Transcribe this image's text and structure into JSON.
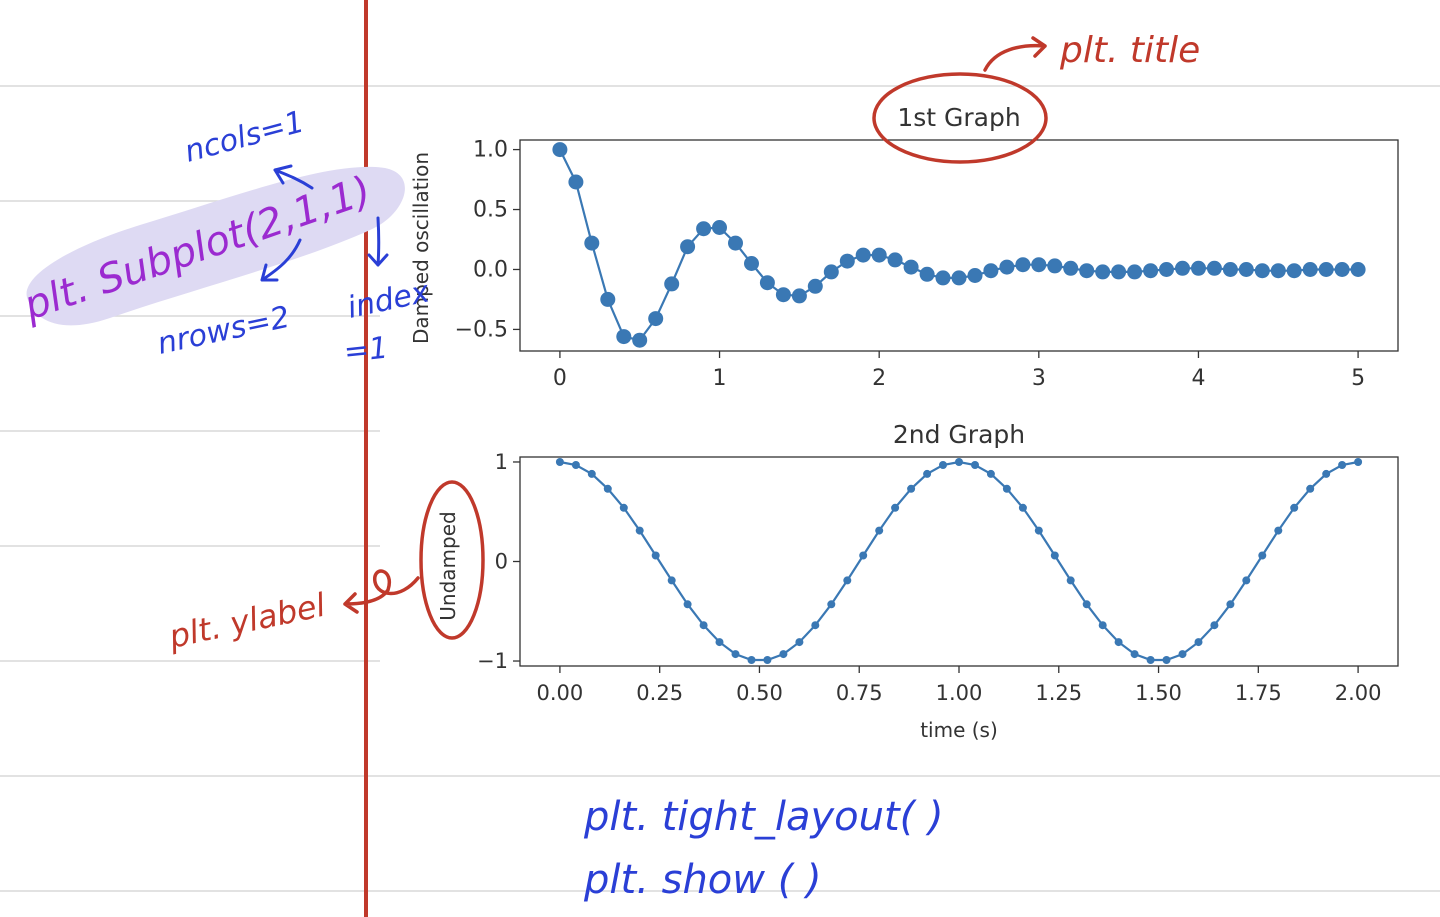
{
  "colors": {
    "series": "#3a78b4",
    "margin_line": "#c0392b",
    "annotation_red": "#c0392b",
    "annotation_blue": "#2a3fd6",
    "annotation_purple": "#9b2ad0",
    "highlight": "#d9d6f2",
    "ruling": "#d6d6d6"
  },
  "annotations": {
    "subplot_call": "plt. Subplot(2,1,1)",
    "ncols": "ncols=1",
    "nrows": "nrows=2",
    "index_line1": "index",
    "index_line2": "=1",
    "title_note": "plt. title",
    "ylabel_note": "plt. ylabel",
    "tight_layout": "plt. tight_layout( )",
    "show": "plt. show ( )"
  },
  "chart_data": [
    {
      "type": "line",
      "title": "1st Graph",
      "xlabel": "",
      "ylabel": "Damped oscillation",
      "marker": "circle-large",
      "xlim": [
        -0.25,
        5.25
      ],
      "ylim": [
        -0.68,
        1.08
      ],
      "xticks": [
        0,
        1,
        2,
        3,
        4,
        5
      ],
      "xtick_labels": [
        "0",
        "1",
        "2",
        "3",
        "4",
        "5"
      ],
      "yticks": [
        1.0,
        0.5,
        0.0,
        -0.5
      ],
      "ytick_labels": [
        "1.0",
        "0.5",
        "0.0",
        "−0.5"
      ],
      "series": [
        {
          "x": [
            0.0,
            0.1,
            0.2,
            0.3,
            0.4,
            0.5,
            0.6,
            0.7,
            0.8,
            0.9,
            1.0,
            1.1,
            1.2,
            1.3,
            1.4,
            1.5,
            1.6,
            1.7,
            1.8,
            1.9,
            2.0,
            2.1,
            2.2,
            2.3,
            2.4,
            2.5,
            2.6,
            2.7,
            2.8,
            2.9,
            3.0,
            3.1,
            3.2,
            3.3,
            3.4,
            3.5,
            3.6,
            3.7,
            3.8,
            3.9,
            4.0,
            4.1,
            4.2,
            4.3,
            4.4,
            4.5,
            4.6,
            4.7,
            4.8,
            4.9,
            5.0
          ],
          "y": [
            1.0,
            0.73,
            0.22,
            -0.25,
            -0.56,
            -0.59,
            -0.41,
            -0.12,
            0.19,
            0.34,
            0.35,
            0.22,
            0.05,
            -0.11,
            -0.21,
            -0.22,
            -0.14,
            -0.02,
            0.07,
            0.12,
            0.12,
            0.08,
            0.02,
            -0.04,
            -0.07,
            -0.07,
            -0.05,
            -0.01,
            0.02,
            0.04,
            0.04,
            0.03,
            0.01,
            -0.01,
            -0.02,
            -0.02,
            -0.02,
            -0.01,
            0.0,
            0.01,
            0.01,
            0.01,
            0.0,
            0.0,
            -0.01,
            -0.01,
            -0.01,
            0.0,
            0.0,
            0.0,
            0.0
          ]
        }
      ]
    },
    {
      "type": "line",
      "title": "2nd Graph",
      "xlabel": "time (s)",
      "ylabel": "Undamped",
      "marker": "dot-small",
      "xlim": [
        -0.1,
        2.1
      ],
      "ylim": [
        -1.05,
        1.05
      ],
      "xticks": [
        0.0,
        0.25,
        0.5,
        0.75,
        1.0,
        1.25,
        1.5,
        1.75,
        2.0
      ],
      "xtick_labels": [
        "0.00",
        "0.25",
        "0.50",
        "0.75",
        "1.00",
        "1.25",
        "1.50",
        "1.75",
        "2.00"
      ],
      "yticks": [
        1,
        0,
        -1
      ],
      "ytick_labels": [
        "1",
        "0",
        "−1"
      ],
      "series": [
        {
          "x": [
            0.0,
            0.04,
            0.08,
            0.12,
            0.16,
            0.2,
            0.24,
            0.28,
            0.32,
            0.36,
            0.4,
            0.44,
            0.48,
            0.52,
            0.56,
            0.6,
            0.64,
            0.68,
            0.72,
            0.76,
            0.8,
            0.84,
            0.88,
            0.92,
            0.96,
            1.0,
            1.04,
            1.08,
            1.12,
            1.16,
            1.2,
            1.24,
            1.28,
            1.32,
            1.36,
            1.4,
            1.44,
            1.48,
            1.52,
            1.56,
            1.6,
            1.64,
            1.68,
            1.72,
            1.76,
            1.8,
            1.84,
            1.88,
            1.92,
            1.96,
            2.0
          ],
          "y": [
            1.0,
            0.97,
            0.88,
            0.73,
            0.54,
            0.31,
            0.06,
            -0.19,
            -0.43,
            -0.64,
            -0.81,
            -0.93,
            -0.99,
            -0.99,
            -0.93,
            -0.81,
            -0.64,
            -0.43,
            -0.19,
            0.06,
            0.31,
            0.54,
            0.73,
            0.88,
            0.97,
            1.0,
            0.97,
            0.88,
            0.73,
            0.54,
            0.31,
            0.06,
            -0.19,
            -0.43,
            -0.64,
            -0.81,
            -0.93,
            -0.99,
            -0.99,
            -0.93,
            -0.81,
            -0.64,
            -0.43,
            -0.19,
            0.06,
            0.31,
            0.54,
            0.73,
            0.88,
            0.97,
            1.0
          ]
        }
      ]
    }
  ]
}
